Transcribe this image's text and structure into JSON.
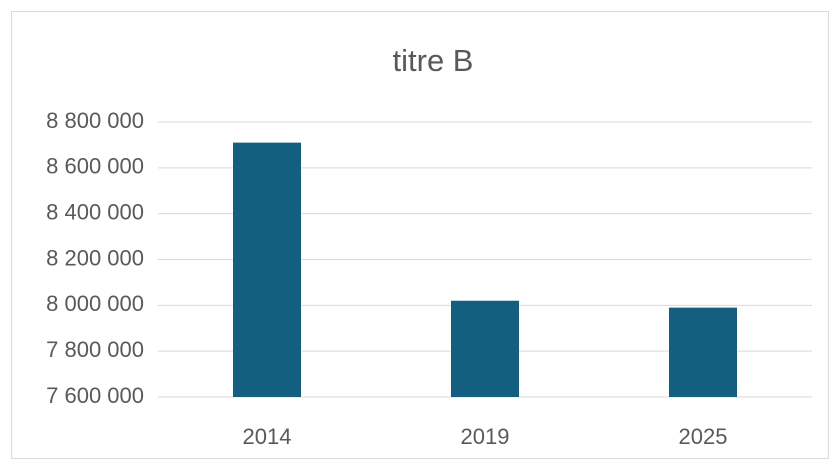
{
  "chart_data": {
    "type": "bar",
    "title": "titre B",
    "categories": [
      "2014",
      "2019",
      "2025"
    ],
    "values": [
      8710000,
      8020000,
      7990000
    ],
    "color": "#145f7f",
    "ylim": [
      7600000,
      8800000
    ],
    "yticks": [
      {
        "value": 7600000,
        "label": "7 600 000"
      },
      {
        "value": 7800000,
        "label": "7 800 000"
      },
      {
        "value": 8000000,
        "label": "8 000 000"
      },
      {
        "value": 8200000,
        "label": "8 200 000"
      },
      {
        "value": 8400000,
        "label": "8 400 000"
      },
      {
        "value": 8600000,
        "label": "8 600 000"
      },
      {
        "value": 8800000,
        "label": "8 800 000"
      }
    ],
    "grid": true
  }
}
